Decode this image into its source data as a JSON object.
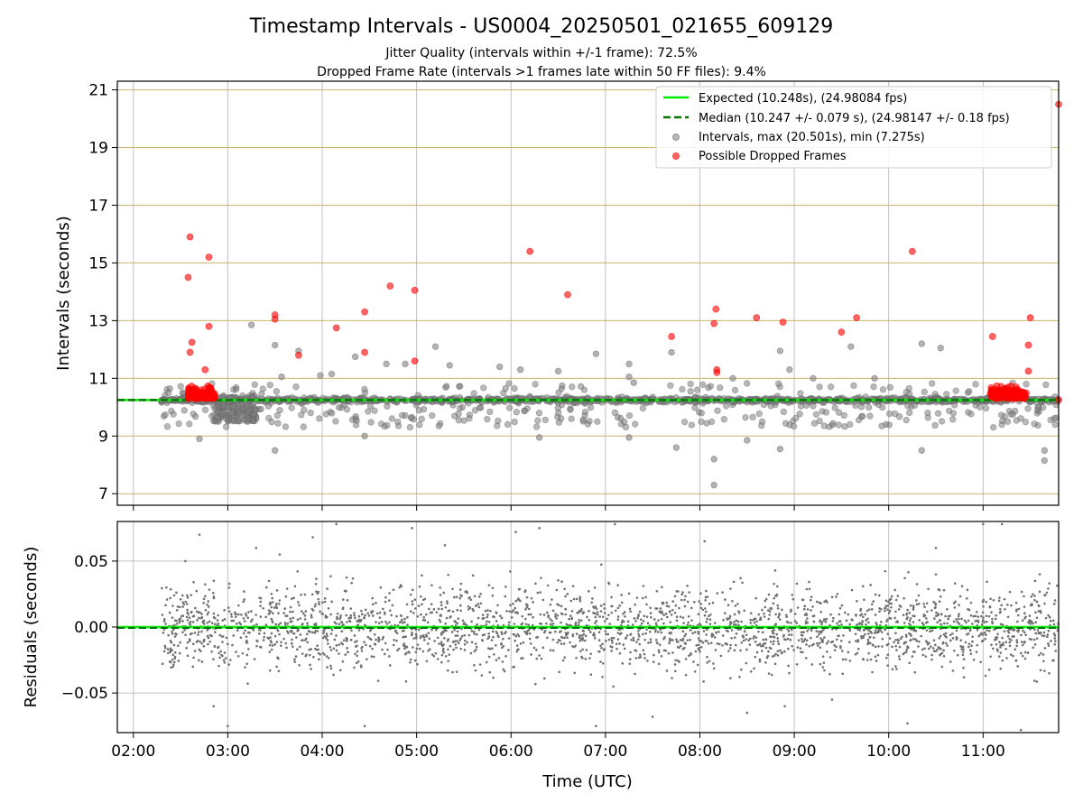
{
  "chart_data": [
    {
      "type": "scatter",
      "title": "Timestamp Intervals - US0004_20250501_021655_609129",
      "subtitle_1": "Jitter Quality (intervals within +/-1 frame): 72.5%",
      "subtitle_2": "Dropped Frame Rate (intervals >1 frames late within 50 FF files): 9.4%",
      "ylabel": "Intervals (seconds)",
      "ylim": [
        6.6,
        21.3
      ],
      "xlim_hours": [
        1.83,
        11.8
      ],
      "yticks": [
        7,
        9,
        11,
        13,
        15,
        17,
        19,
        21
      ],
      "ytick_labels": [
        "7",
        "9",
        "11",
        "13",
        "15",
        "17",
        "19",
        "21"
      ],
      "expected_interval": 10.248,
      "median_interval": 10.247,
      "legend": {
        "position": "top-right",
        "expected": "Expected (10.248s), (24.98084 fps)",
        "median": "Median (10.247 +/- 0.079 s), (24.98147 +/- 0.18 fps)",
        "intervals": "Intervals, max (20.501s), min (7.275s)",
        "dropped": "Possible Dropped Frames"
      },
      "series": [
        {
          "name": "Possible Dropped Frames (selected)",
          "points": [
            [
              2.58,
              14.5
            ],
            [
              2.6,
              15.9
            ],
            [
              2.62,
              12.25
            ],
            [
              2.6,
              11.9
            ],
            [
              2.76,
              11.3
            ],
            [
              2.8,
              15.2
            ],
            [
              2.8,
              12.8
            ],
            [
              3.5,
              13.2
            ],
            [
              3.5,
              13.05
            ],
            [
              3.75,
              11.8
            ],
            [
              4.15,
              12.75
            ],
            [
              4.45,
              13.3
            ],
            [
              4.45,
              11.9
            ],
            [
              4.72,
              14.2
            ],
            [
              4.98,
              14.05
            ],
            [
              4.98,
              11.6
            ],
            [
              6.2,
              15.4
            ],
            [
              6.6,
              13.9
            ],
            [
              7.7,
              12.45
            ],
            [
              8.15,
              12.9
            ],
            [
              8.17,
              13.4
            ],
            [
              8.18,
              11.2
            ],
            [
              8.18,
              11.3
            ],
            [
              8.6,
              13.1
            ],
            [
              8.88,
              12.95
            ],
            [
              9.5,
              12.6
            ],
            [
              9.66,
              13.1
            ],
            [
              10.25,
              15.4
            ],
            [
              11.1,
              12.45
            ],
            [
              11.5,
              13.1
            ],
            [
              11.48,
              12.15
            ],
            [
              11.48,
              11.25
            ],
            [
              11.82,
              20.5
            ],
            [
              11.8,
              10.25
            ]
          ]
        },
        {
          "name": "Intervals (selected outliers)",
          "points": [
            [
              3.25,
              12.85
            ],
            [
              3.5,
              12.15
            ],
            [
              3.57,
              11.05
            ],
            [
              3.75,
              11.95
            ],
            [
              3.98,
              11.1
            ],
            [
              4.1,
              11.15
            ],
            [
              4.35,
              11.75
            ],
            [
              4.68,
              11.5
            ],
            [
              4.88,
              11.5
            ],
            [
              5.2,
              12.1
            ],
            [
              5.35,
              11.45
            ],
            [
              5.88,
              11.4
            ],
            [
              6.1,
              11.3
            ],
            [
              6.5,
              11.25
            ],
            [
              6.9,
              11.85
            ],
            [
              7.25,
              11.5
            ],
            [
              7.25,
              11.05
            ],
            [
              7.3,
              10.85
            ],
            [
              7.7,
              11.9
            ],
            [
              8.15,
              8.2
            ],
            [
              8.15,
              7.3
            ],
            [
              8.35,
              11.0
            ],
            [
              8.85,
              11.95
            ],
            [
              8.95,
              11.3
            ],
            [
              9.2,
              11.0
            ],
            [
              9.6,
              12.1
            ],
            [
              9.85,
              11.0
            ],
            [
              10.35,
              12.2
            ],
            [
              10.55,
              12.05
            ],
            [
              3.5,
              8.5
            ],
            [
              2.7,
              8.9
            ],
            [
              7.25,
              8.95
            ],
            [
              8.5,
              8.85
            ],
            [
              8.85,
              8.55
            ],
            [
              10.35,
              8.5
            ],
            [
              11.65,
              8.15
            ],
            [
              11.65,
              8.5
            ],
            [
              7.75,
              8.6
            ],
            [
              4.45,
              9.0
            ],
            [
              6.3,
              8.95
            ]
          ]
        }
      ]
    },
    {
      "type": "scatter",
      "ylabel": "Residuals (seconds)",
      "xlabel": "Time (UTC)",
      "ylim": [
        -0.08,
        0.08
      ],
      "yticks": [
        -0.05,
        0.0,
        0.05
      ],
      "ytick_labels": [
        "−0.05",
        "0.00",
        "0.05"
      ],
      "xticks_hours": [
        2,
        3,
        4,
        5,
        6,
        7,
        8,
        9,
        10,
        11
      ],
      "xtick_labels": [
        "02:00",
        "03:00",
        "04:00",
        "05:00",
        "06:00",
        "07:00",
        "08:00",
        "09:00",
        "10:00",
        "11:00"
      ],
      "series": [
        {
          "name": "Residuals (selected)",
          "points": [
            [
              2.35,
              0.03
            ],
            [
              2.42,
              -0.03
            ],
            [
              2.55,
              0.05
            ],
            [
              2.7,
              0.07
            ],
            [
              2.85,
              -0.06
            ],
            [
              3.0,
              -0.075
            ],
            [
              3.3,
              0.06
            ],
            [
              3.55,
              0.055
            ],
            [
              3.9,
              0.068
            ],
            [
              4.15,
              0.078
            ],
            [
              4.45,
              -0.075
            ],
            [
              4.95,
              0.075
            ],
            [
              5.3,
              0.062
            ],
            [
              6.05,
              0.072
            ],
            [
              6.3,
              0.075
            ],
            [
              6.9,
              -0.075
            ],
            [
              7.1,
              0.078
            ],
            [
              7.5,
              -0.068
            ],
            [
              8.05,
              0.065
            ],
            [
              8.5,
              -0.065
            ],
            [
              8.9,
              -0.06
            ],
            [
              9.4,
              -0.055
            ],
            [
              10.2,
              -0.073
            ],
            [
              10.5,
              0.06
            ],
            [
              11.0,
              0.078
            ],
            [
              11.2,
              0.078
            ],
            [
              11.4,
              -0.078
            ],
            [
              11.7,
              -0.035
            ],
            [
              11.6,
              0.04
            ]
          ]
        }
      ]
    }
  ],
  "colors": {
    "expected": "#00ee00",
    "median": "#007700",
    "intervals": "#808080",
    "dropped": "#ff0000",
    "grid_upper": "#c8b66a",
    "grid_lower": "#c0c0c0"
  }
}
